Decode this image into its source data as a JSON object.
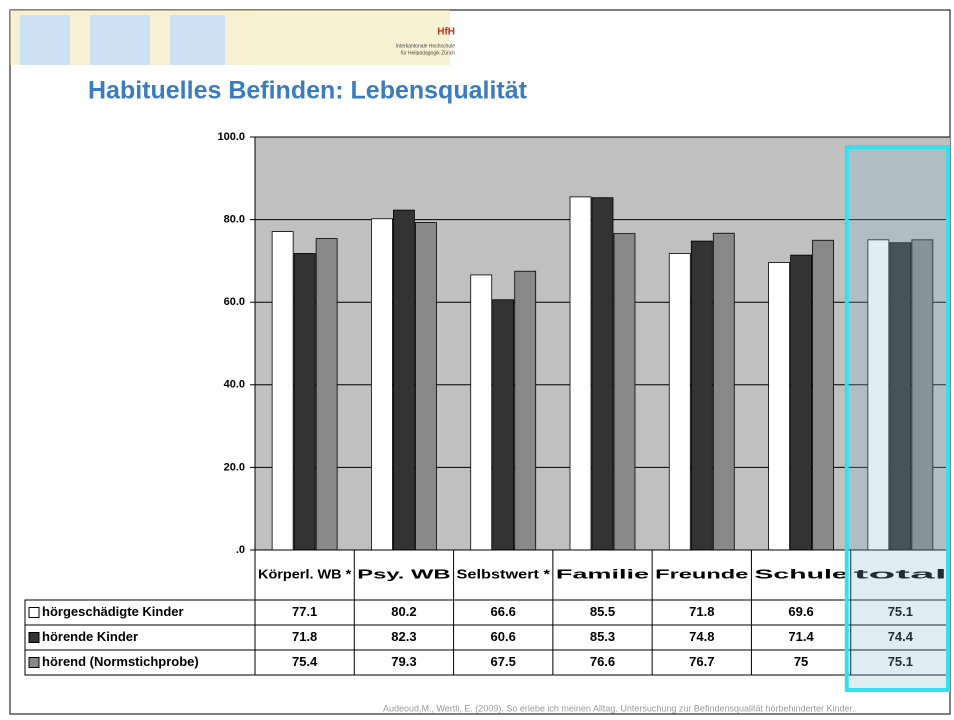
{
  "header": {
    "logo": "HfH",
    "institution_line1": "Interkantonale Hochschule",
    "institution_line2": "für Heilpädagogik Zürich"
  },
  "title": "Habituelles Befinden: Lebensqualität",
  "chart_data": {
    "type": "bar",
    "categories": [
      "Körperl. WB *",
      "Psy. WB",
      "Selbstwert *",
      "Familie",
      "Freunde",
      "Schule",
      "total"
    ],
    "series": [
      {
        "name": "hörgeschädigte Kinder",
        "color": "#ffffff",
        "values": [
          77.1,
          80.2,
          66.6,
          85.5,
          71.8,
          69.6,
          75.1
        ]
      },
      {
        "name": "hörende Kinder",
        "color": "#333333",
        "values": [
          71.8,
          82.3,
          60.6,
          85.3,
          74.8,
          71.4,
          74.4
        ]
      },
      {
        "name": "hörend (Normstichprobe)",
        "color": "#888888",
        "values": [
          75.4,
          79.3,
          67.5,
          76.6,
          76.7,
          75,
          75.1
        ]
      }
    ],
    "ylim": [
      0,
      100
    ],
    "yticks": [
      {
        "value": 0,
        "label": ".0"
      },
      {
        "value": 20,
        "label": "20.0"
      },
      {
        "value": 40,
        "label": "40.0"
      },
      {
        "value": 60,
        "label": "60.0"
      },
      {
        "value": 80,
        "label": "80.0"
      },
      {
        "value": 100,
        "label": "100.0"
      }
    ],
    "grid": true
  },
  "footer": "Audeoud,M., Wertli, E. (2009). So erlebe ich meinen Alltag. Untersuchung zur Befindensqualität hörbehinderter Kinder.."
}
